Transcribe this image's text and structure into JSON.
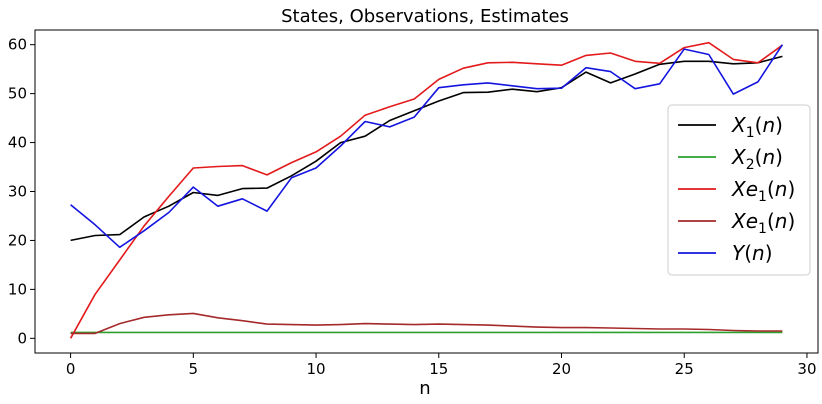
{
  "chart_data": {
    "type": "line",
    "title": "States, Observations, Estimates",
    "xlabel": "n",
    "ylabel": "",
    "xlim": [
      -1.45,
      30.45
    ],
    "ylim": [
      -3,
      63
    ],
    "xticks": [
      0,
      5,
      10,
      15,
      20,
      25,
      30
    ],
    "yticks": [
      0,
      10,
      20,
      30,
      40,
      50,
      60
    ],
    "grid": false,
    "legend_position": "right",
    "x": [
      0,
      1,
      2,
      3,
      4,
      5,
      6,
      7,
      8,
      9,
      10,
      11,
      12,
      13,
      14,
      15,
      16,
      17,
      18,
      19,
      20,
      21,
      22,
      23,
      24,
      25,
      26,
      27,
      28,
      29
    ],
    "series": [
      {
        "name": "X1(n)",
        "label_base": "X",
        "label_sub": "1",
        "label_arg": "(n)",
        "color": "#000000",
        "values": [
          20,
          21,
          21.2,
          24.8,
          27,
          29.8,
          29.2,
          30.6,
          30.7,
          33.2,
          36.2,
          40,
          41.3,
          44.5,
          46.5,
          48.5,
          50.2,
          50.3,
          50.9,
          50.4,
          51.2,
          54.4,
          52.2,
          54,
          56,
          56.6,
          56.6,
          56.1,
          56.3,
          57.6
        ]
      },
      {
        "name": "X2(n)",
        "label_base": "X",
        "label_sub": "2",
        "label_arg": "(n)",
        "color": "#2ca02c",
        "values": [
          1.2,
          1.2,
          1.2,
          1.2,
          1.2,
          1.2,
          1.2,
          1.2,
          1.2,
          1.2,
          1.2,
          1.2,
          1.2,
          1.2,
          1.2,
          1.2,
          1.2,
          1.2,
          1.2,
          1.2,
          1.2,
          1.2,
          1.2,
          1.2,
          1.2,
          1.2,
          1.2,
          1.2,
          1.2,
          1.2
        ]
      },
      {
        "name": "Xe1(n)",
        "label_base": "Xe",
        "label_sub": "1",
        "label_arg": "(n)",
        "color": "#e31a1c",
        "values": [
          0,
          9,
          16,
          23,
          29,
          34.8,
          35.1,
          35.3,
          33.4,
          35.9,
          38.1,
          41.3,
          45.6,
          47.3,
          48.9,
          52.9,
          55.2,
          56.3,
          56.4,
          56.1,
          55.8,
          57.8,
          58.3,
          56.6,
          56.2,
          59.4,
          60.4,
          57,
          56.3,
          59.9
        ]
      },
      {
        "name": "Xe1(n)",
        "label_base": "Xe",
        "label_sub": "1",
        "label_arg": "(n)",
        "color": "#a52a2a",
        "values": [
          1,
          1,
          3,
          4.3,
          4.8,
          5.1,
          4.2,
          3.6,
          2.9,
          2.8,
          2.7,
          2.8,
          3,
          2.9,
          2.8,
          2.9,
          2.8,
          2.7,
          2.5,
          2.3,
          2.2,
          2.2,
          2.1,
          2,
          1.9,
          1.9,
          1.8,
          1.6,
          1.5,
          1.5
        ]
      },
      {
        "name": "Y(n)",
        "label_base": "Y",
        "label_sub": "",
        "label_arg": "(n)",
        "color": "#1414e0",
        "values": [
          27.3,
          23.2,
          18.6,
          22,
          25.7,
          30.9,
          27,
          28.5,
          26,
          32.8,
          34.8,
          39.3,
          44.3,
          43.2,
          45.2,
          51.2,
          51.8,
          52.2,
          51.6,
          51,
          51.1,
          55.3,
          54.5,
          51,
          52,
          59.1,
          58,
          49.9,
          52.4,
          60
        ]
      }
    ]
  }
}
